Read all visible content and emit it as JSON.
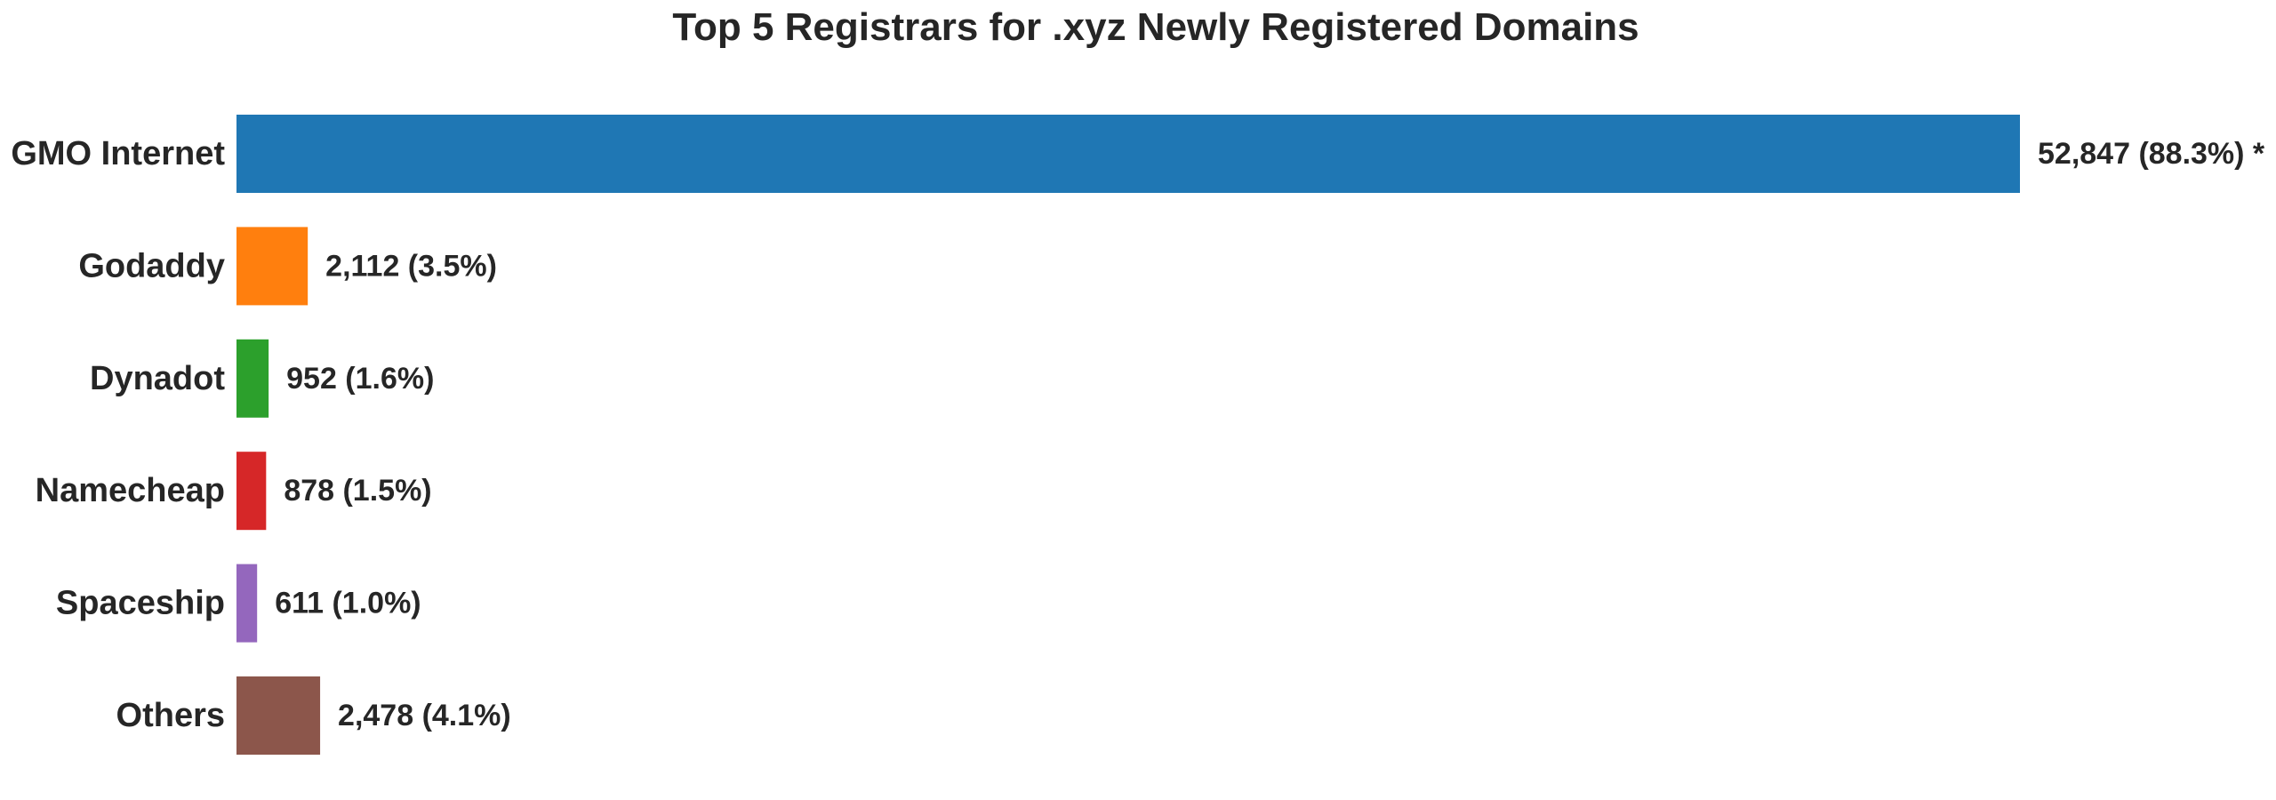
{
  "chart_data": {
    "type": "bar",
    "orientation": "horizontal",
    "title": "Top 5 Registrars for .xyz Newly Registered Domains",
    "xlabel": "",
    "ylabel": "",
    "grid": false,
    "categories": [
      "GMO Internet",
      "Godaddy",
      "Dynadot",
      "Namecheap",
      "Spaceship",
      "Others"
    ],
    "values": [
      52847,
      2112,
      952,
      878,
      611,
      2478
    ],
    "data_labels": [
      "52,847 (88.3%) *",
      "2,112 (3.5%)",
      "952 (1.6%)",
      "878 (1.5%)",
      "611 (1.0%)",
      "2,478 (4.1%)"
    ],
    "colors": [
      "#1f77b4",
      "#ff7f0e",
      "#2ca02c",
      "#d62728",
      "#9467bd",
      "#8c564b"
    ],
    "xlim": [
      0,
      52847
    ]
  }
}
